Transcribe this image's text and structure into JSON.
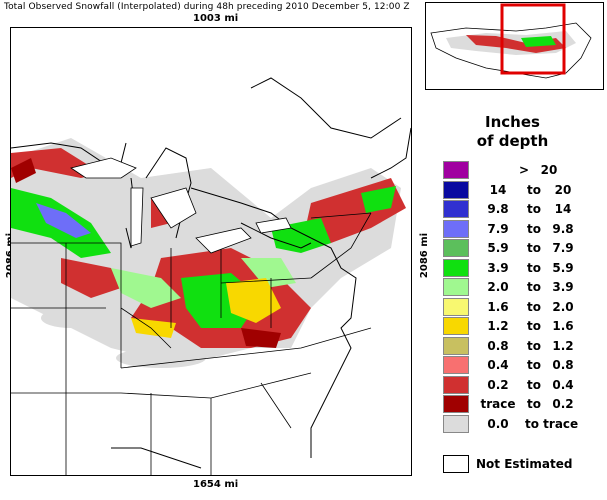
{
  "title": "Total Observed Snowfall (Interpolated) during 48h preceding 2010 December 5, 12:00 Z",
  "dimensions": {
    "top": "1003 mi",
    "bottom": "1654 mi",
    "left": "2086 mi",
    "right": "2086 mi"
  },
  "legend": {
    "title_line1": "Inches",
    "title_line2": "of depth",
    "top_item": {
      "symbol": ">",
      "value": "20",
      "color": "#a000a0"
    },
    "items": [
      {
        "lo": "14",
        "to": "to",
        "hi": "20",
        "color": "#0a0aa0"
      },
      {
        "lo": "9.8",
        "to": "to",
        "hi": "14",
        "color": "#3030d0"
      },
      {
        "lo": "7.9",
        "to": "to",
        "hi": "9.8",
        "color": "#6e6ef8"
      },
      {
        "lo": "5.9",
        "to": "to",
        "hi": "7.9",
        "color": "#5cbf5c"
      },
      {
        "lo": "3.9",
        "to": "to",
        "hi": "5.9",
        "color": "#10e010"
      },
      {
        "lo": "2.0",
        "to": "to",
        "hi": "3.9",
        "color": "#a0f890"
      },
      {
        "lo": "1.6",
        "to": "to",
        "hi": "2.0",
        "color": "#f8f870"
      },
      {
        "lo": "1.2",
        "to": "to",
        "hi": "1.6",
        "color": "#f8d800"
      },
      {
        "lo": "0.8",
        "to": "to",
        "hi": "1.2",
        "color": "#c8c060"
      },
      {
        "lo": "0.4",
        "to": "to",
        "hi": "0.8",
        "color": "#f87070"
      },
      {
        "lo": "0.2",
        "to": "to",
        "hi": "0.4",
        "color": "#d03030"
      },
      {
        "lo": "trace",
        "to": "to",
        "hi": "0.2",
        "color": "#a00000"
      },
      {
        "lo": "0.0",
        "to": "to trace",
        "hi": "",
        "color": "#dcdcdc"
      }
    ],
    "not_estimated": "Not Estimated"
  },
  "colors": {
    "land": "#ffffff",
    "no_snow": "#dcdcdc",
    "inset_box": "#e00000"
  }
}
